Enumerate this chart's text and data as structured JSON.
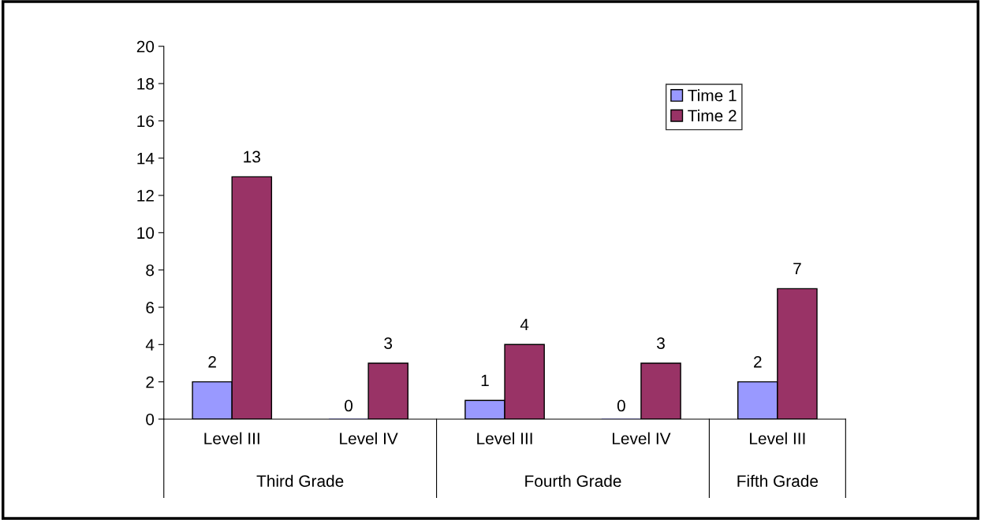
{
  "chart_data": {
    "type": "bar",
    "categories": [
      "Level III",
      "Level IV",
      "Level III",
      "Level IV",
      "Level III"
    ],
    "series": [
      {
        "name": "Time 1",
        "color": "#9999ff",
        "values": [
          2,
          0,
          1,
          0,
          2
        ]
      },
      {
        "name": "Time 2",
        "color": "#993366",
        "values": [
          13,
          3,
          4,
          3,
          7
        ]
      }
    ],
    "annotations": [
      "Third Grade",
      "Fourth Grade",
      "Fifth Grade"
    ],
    "ylim": [
      0,
      20
    ],
    "yticks": [
      0,
      2,
      4,
      6,
      8,
      10,
      12,
      14,
      16,
      18,
      20
    ],
    "data_labels": true,
    "legend": "top right",
    "grid": false
  }
}
